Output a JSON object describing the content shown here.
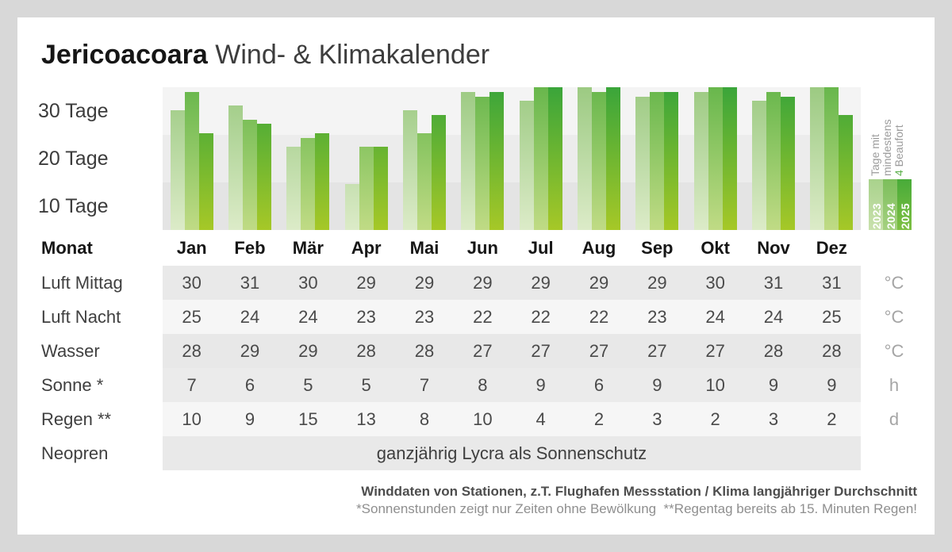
{
  "title": {
    "brand": "Jericoacoara",
    "rest": "Wind- & Klimakalender"
  },
  "chart_data": {
    "type": "bar",
    "title": "Tage mit mindestens 4 Beaufort",
    "categories": [
      "Jan",
      "Feb",
      "Mär",
      "Apr",
      "Mai",
      "Jun",
      "Jul",
      "Aug",
      "Sep",
      "Okt",
      "Nov",
      "Dez"
    ],
    "series": [
      {
        "name": "2023",
        "values": [
          26,
          27,
          18,
          10,
          26,
          30,
          28,
          31,
          29,
          30,
          28,
          31
        ]
      },
      {
        "name": "2024",
        "values": [
          30,
          24,
          20,
          18,
          21,
          29,
          31,
          30,
          30,
          31,
          30,
          31
        ]
      },
      {
        "name": "2025",
        "values": [
          21,
          23,
          21,
          18,
          25,
          30,
          31,
          31,
          30,
          31,
          29,
          25
        ]
      }
    ],
    "ylabel": "Tage",
    "yticks": [
      "30 Tage",
      "20 Tage",
      "10 Tage"
    ],
    "ylim": [
      0,
      31
    ],
    "grid": "banded-rows",
    "legend_position": "right"
  },
  "legend": {
    "rotated_label": {
      "line1": "Tage mit",
      "line2": "mindestens",
      "line3_accent": "4",
      "line3_rest": " Beaufort"
    },
    "years": [
      {
        "label": "2023"
      },
      {
        "label": "2024"
      },
      {
        "label": "2025"
      }
    ]
  },
  "table": {
    "header_label": "Monat",
    "rows": [
      {
        "label": "Luft Mittag",
        "unit": "°C",
        "values": [
          30,
          31,
          30,
          29,
          29,
          29,
          29,
          29,
          29,
          30,
          31,
          31
        ]
      },
      {
        "label": "Luft Nacht",
        "unit": "°C",
        "values": [
          25,
          24,
          24,
          23,
          23,
          22,
          22,
          22,
          23,
          24,
          24,
          25
        ]
      },
      {
        "label": "Wasser",
        "unit": "°C",
        "values": [
          28,
          29,
          29,
          28,
          28,
          27,
          27,
          27,
          27,
          27,
          28,
          28
        ]
      },
      {
        "label": "Sonne *",
        "unit": "h",
        "values": [
          7,
          6,
          5,
          5,
          7,
          8,
          9,
          6,
          9,
          10,
          9,
          9
        ]
      },
      {
        "label": "Regen **",
        "unit": "d",
        "values": [
          10,
          9,
          15,
          13,
          8,
          10,
          4,
          2,
          3,
          2,
          3,
          2
        ]
      },
      {
        "label": "Neopren",
        "unit": "",
        "span_text": "ganzjährig Lycra als Sonnenschutz"
      }
    ]
  },
  "footer": {
    "line1": "Winddaten von Stationen, z.T. Flughafen Messstation / Klima langjähriger Durchschnitt",
    "line2": "*Sonnenstunden zeigt nur Zeiten ohne Bewölkung  **Regentag bereits ab 15. Minuten Regen!"
  },
  "colors": {
    "accent_green": "#5cb04c",
    "series_2023_gradient": [
      "#dcebc8",
      "#9cca82"
    ],
    "series_2024_gradient": [
      "#c0db85",
      "#68b74c"
    ],
    "series_2025_gradient": [
      "#a6c827",
      "#3aa53a"
    ],
    "chart_bands": [
      "#f4f4f4",
      "#ececec",
      "#e4e4e4"
    ],
    "table_stripe_dark": "#e9e9e9",
    "table_stripe_light": "#f6f6f6"
  }
}
